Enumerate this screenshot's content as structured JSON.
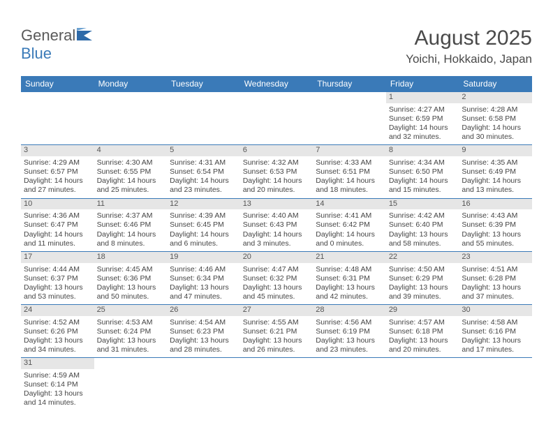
{
  "logo": {
    "text1": "General",
    "text2": "Blue"
  },
  "title": "August 2025",
  "location": "Yoichi, Hokkaido, Japan",
  "colors": {
    "header_bg": "#3a7ab8",
    "header_text": "#ffffff",
    "daynum_bg": "#e6e6e6",
    "text": "#444444",
    "border": "#3a7ab8"
  },
  "weekdays": [
    "Sunday",
    "Monday",
    "Tuesday",
    "Wednesday",
    "Thursday",
    "Friday",
    "Saturday"
  ],
  "weeks": [
    [
      null,
      null,
      null,
      null,
      null,
      {
        "d": "1",
        "sr": "4:27 AM",
        "ss": "6:59 PM",
        "dl": "14 hours and 32 minutes."
      },
      {
        "d": "2",
        "sr": "4:28 AM",
        "ss": "6:58 PM",
        "dl": "14 hours and 30 minutes."
      }
    ],
    [
      {
        "d": "3",
        "sr": "4:29 AM",
        "ss": "6:57 PM",
        "dl": "14 hours and 27 minutes."
      },
      {
        "d": "4",
        "sr": "4:30 AM",
        "ss": "6:55 PM",
        "dl": "14 hours and 25 minutes."
      },
      {
        "d": "5",
        "sr": "4:31 AM",
        "ss": "6:54 PM",
        "dl": "14 hours and 23 minutes."
      },
      {
        "d": "6",
        "sr": "4:32 AM",
        "ss": "6:53 PM",
        "dl": "14 hours and 20 minutes."
      },
      {
        "d": "7",
        "sr": "4:33 AM",
        "ss": "6:51 PM",
        "dl": "14 hours and 18 minutes."
      },
      {
        "d": "8",
        "sr": "4:34 AM",
        "ss": "6:50 PM",
        "dl": "14 hours and 15 minutes."
      },
      {
        "d": "9",
        "sr": "4:35 AM",
        "ss": "6:49 PM",
        "dl": "14 hours and 13 minutes."
      }
    ],
    [
      {
        "d": "10",
        "sr": "4:36 AM",
        "ss": "6:47 PM",
        "dl": "14 hours and 11 minutes."
      },
      {
        "d": "11",
        "sr": "4:37 AM",
        "ss": "6:46 PM",
        "dl": "14 hours and 8 minutes."
      },
      {
        "d": "12",
        "sr": "4:39 AM",
        "ss": "6:45 PM",
        "dl": "14 hours and 6 minutes."
      },
      {
        "d": "13",
        "sr": "4:40 AM",
        "ss": "6:43 PM",
        "dl": "14 hours and 3 minutes."
      },
      {
        "d": "14",
        "sr": "4:41 AM",
        "ss": "6:42 PM",
        "dl": "14 hours and 0 minutes."
      },
      {
        "d": "15",
        "sr": "4:42 AM",
        "ss": "6:40 PM",
        "dl": "13 hours and 58 minutes."
      },
      {
        "d": "16",
        "sr": "4:43 AM",
        "ss": "6:39 PM",
        "dl": "13 hours and 55 minutes."
      }
    ],
    [
      {
        "d": "17",
        "sr": "4:44 AM",
        "ss": "6:37 PM",
        "dl": "13 hours and 53 minutes."
      },
      {
        "d": "18",
        "sr": "4:45 AM",
        "ss": "6:36 PM",
        "dl": "13 hours and 50 minutes."
      },
      {
        "d": "19",
        "sr": "4:46 AM",
        "ss": "6:34 PM",
        "dl": "13 hours and 47 minutes."
      },
      {
        "d": "20",
        "sr": "4:47 AM",
        "ss": "6:32 PM",
        "dl": "13 hours and 45 minutes."
      },
      {
        "d": "21",
        "sr": "4:48 AM",
        "ss": "6:31 PM",
        "dl": "13 hours and 42 minutes."
      },
      {
        "d": "22",
        "sr": "4:50 AM",
        "ss": "6:29 PM",
        "dl": "13 hours and 39 minutes."
      },
      {
        "d": "23",
        "sr": "4:51 AM",
        "ss": "6:28 PM",
        "dl": "13 hours and 37 minutes."
      }
    ],
    [
      {
        "d": "24",
        "sr": "4:52 AM",
        "ss": "6:26 PM",
        "dl": "13 hours and 34 minutes."
      },
      {
        "d": "25",
        "sr": "4:53 AM",
        "ss": "6:24 PM",
        "dl": "13 hours and 31 minutes."
      },
      {
        "d": "26",
        "sr": "4:54 AM",
        "ss": "6:23 PM",
        "dl": "13 hours and 28 minutes."
      },
      {
        "d": "27",
        "sr": "4:55 AM",
        "ss": "6:21 PM",
        "dl": "13 hours and 26 minutes."
      },
      {
        "d": "28",
        "sr": "4:56 AM",
        "ss": "6:19 PM",
        "dl": "13 hours and 23 minutes."
      },
      {
        "d": "29",
        "sr": "4:57 AM",
        "ss": "6:18 PM",
        "dl": "13 hours and 20 minutes."
      },
      {
        "d": "30",
        "sr": "4:58 AM",
        "ss": "6:16 PM",
        "dl": "13 hours and 17 minutes."
      }
    ],
    [
      {
        "d": "31",
        "sr": "4:59 AM",
        "ss": "6:14 PM",
        "dl": "13 hours and 14 minutes."
      },
      null,
      null,
      null,
      null,
      null,
      null
    ]
  ],
  "labels": {
    "sunrise": "Sunrise: ",
    "sunset": "Sunset: ",
    "daylight": "Daylight: "
  }
}
